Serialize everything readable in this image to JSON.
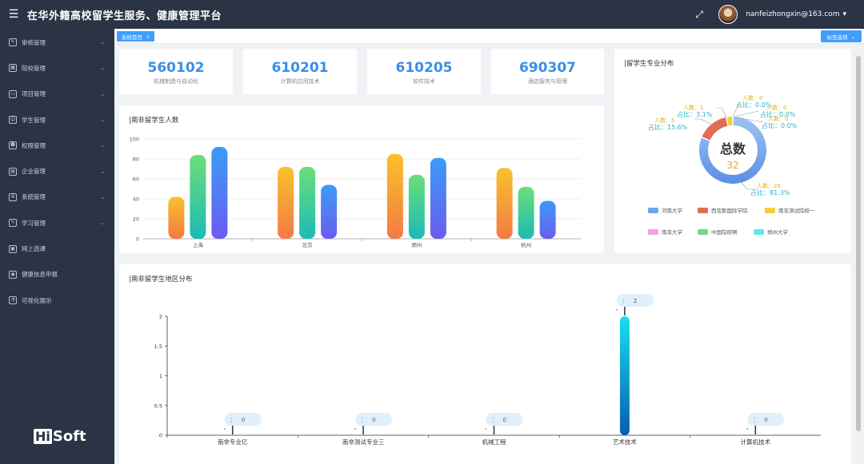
{
  "app": {
    "title": "在华外籍高校留学生服务、健康管理平台",
    "user_email": "nanfeizhongxin@163.com"
  },
  "sidebar": {
    "items": [
      {
        "label": "审核管理",
        "icon": "edit-icon",
        "has_children": true
      },
      {
        "label": "院校管理",
        "icon": "building-icon",
        "has_children": true
      },
      {
        "label": "项目管理",
        "icon": "monitor-icon",
        "has_children": true
      },
      {
        "label": "学生管理",
        "icon": "user-icon",
        "has_children": true
      },
      {
        "label": "权限管理",
        "icon": "user-key-icon",
        "has_children": true
      },
      {
        "label": "企业管理",
        "icon": "company-icon",
        "has_children": true
      },
      {
        "label": "系统管理",
        "icon": "gear-icon",
        "has_children": true
      },
      {
        "label": "学习管理",
        "icon": "study-icon",
        "has_children": true
      },
      {
        "label": "网上选课",
        "icon": "course-icon",
        "has_children": false
      },
      {
        "label": "健康信息申报",
        "icon": "location-icon",
        "has_children": false
      },
      {
        "label": "可视化展示",
        "icon": "clock-icon",
        "has_children": false
      }
    ],
    "logo": {
      "hi": "Hi",
      "rest": "Soft"
    }
  },
  "tabs": {
    "home_label": "系统首页",
    "close_glyph": "×",
    "options_label": "标签选项"
  },
  "stats": [
    {
      "value": "560102",
      "label": "机械制造与自动化"
    },
    {
      "value": "610201",
      "label": "计算机应用技术"
    },
    {
      "value": "610205",
      "label": "软件技术"
    },
    {
      "value": "690307",
      "label": "酒店服务与管理"
    }
  ],
  "panels": {
    "bar_title": "|南非留学生人数",
    "donut_title": "|留学生专业分布",
    "region_title": "|南非留学生地区分布"
  },
  "colors": {
    "accent": "#409eff",
    "stat_number": "#3a8ee6",
    "sidebar_bg": "#2b3445"
  },
  "chart_data": [
    {
      "type": "bar",
      "title": "|南非留学生人数",
      "categories": [
        "上海",
        "北京",
        "郑州",
        "杭州"
      ],
      "series": [
        {
          "values": [
            42,
            72,
            85,
            71
          ],
          "color": "orange"
        },
        {
          "values": [
            84,
            72,
            64,
            52
          ],
          "color": "green"
        },
        {
          "values": [
            92,
            54,
            81,
            38
          ],
          "color": "blue"
        }
      ],
      "ylim": [
        0,
        100
      ],
      "yticks": [
        0,
        20,
        40,
        60,
        80,
        100
      ],
      "grid": true
    },
    {
      "type": "pie",
      "title": "|留学生专业分布",
      "center_label": "总数",
      "center_value": "32",
      "slices": [
        {
          "name": "河南大学",
          "value": 26,
          "percent": "81.3%",
          "color": "#6aa5f0"
        },
        {
          "name": "西亚斯国际学院",
          "value": 5,
          "percent": "15.6%",
          "color": "#e06c55"
        },
        {
          "name": "南非测试院校一",
          "value": 1,
          "percent": "3.1%",
          "color": "#f2d03a"
        },
        {
          "name": "南非大学",
          "value": 0,
          "percent": "0.0%",
          "color": "#f29ee8"
        },
        {
          "name": "中国院校啊",
          "value": 0,
          "percent": "0.0%",
          "color": "#6fd88a"
        },
        {
          "name": "郑州大学",
          "value": 0,
          "percent": "0.0%",
          "color": "#5de6ee"
        }
      ],
      "label_prefix_count": "人数：",
      "label_prefix_pct": "占比：",
      "legend": "bottom"
    },
    {
      "type": "bar",
      "title": "|南非留学生地区分布",
      "categories": [
        "南非专业亿",
        "南非测试专业三",
        "机械工程",
        "艺术技术",
        "计算机技术"
      ],
      "values": [
        0,
        0,
        0,
        2,
        0
      ],
      "tooltip_prefix": "：",
      "ylim": [
        0,
        2
      ],
      "yticks": [
        "0",
        "0.5",
        "1",
        "1.5",
        "2"
      ]
    }
  ]
}
